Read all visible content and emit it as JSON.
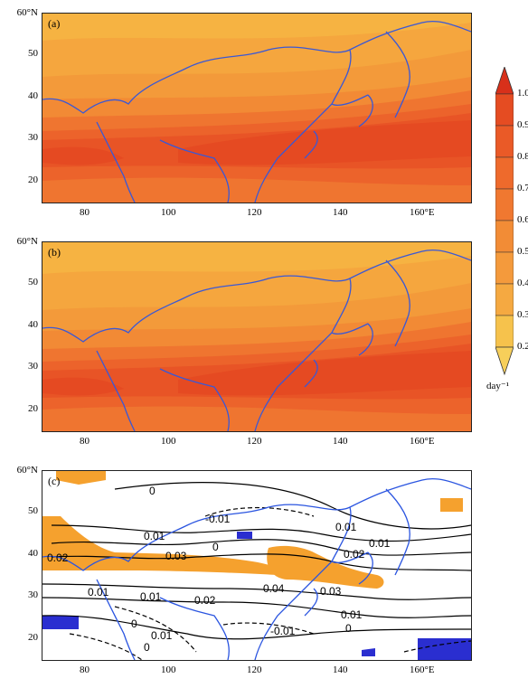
{
  "panels": [
    {
      "label": "(a)"
    },
    {
      "label": "(b)"
    },
    {
      "label": "(c)"
    }
  ],
  "axes": {
    "lat_ticks": [
      "60°N",
      "50",
      "40",
      "30",
      "20"
    ],
    "lon_ticks": [
      "80",
      "100",
      "120",
      "140",
      "160°E"
    ],
    "lat_values": [
      60,
      50,
      40,
      30,
      20
    ],
    "lon_values": [
      80,
      100,
      120,
      140,
      160
    ],
    "lon_range": [
      70,
      170
    ],
    "lat_range": [
      15,
      60
    ]
  },
  "colorbar": {
    "ticks": [
      "0.2",
      "0.3",
      "0.4",
      "0.5",
      "0.6",
      "0.7",
      "0.8",
      "0.9",
      "1.0"
    ],
    "unit": "day⁻¹",
    "colors": [
      "#f6c24c",
      "#f5a941",
      "#f49a3c",
      "#f28c36",
      "#f07830",
      "#ee6a2c",
      "#ea5a27",
      "#e54c22"
    ]
  },
  "contour_labels": [
    {
      "text": "0"
    },
    {
      "text": "-0.01"
    },
    {
      "text": "0.01"
    },
    {
      "text": "0"
    },
    {
      "text": "0.02"
    },
    {
      "text": "0.03"
    },
    {
      "text": "0.01"
    },
    {
      "text": "0.01"
    },
    {
      "text": "0.02"
    },
    {
      "text": "0.04"
    },
    {
      "text": "0.03"
    },
    {
      "text": "0.01"
    },
    {
      "text": "0.02"
    },
    {
      "text": "0.01"
    },
    {
      "text": "0.01"
    },
    {
      "text": "0"
    },
    {
      "text": "-0.01"
    },
    {
      "text": "0"
    },
    {
      "text": "0.01"
    },
    {
      "text": "0"
    }
  ],
  "colors": {
    "coast": "#3a58d6",
    "land_fill": "#f5a12e",
    "sig_blue": "#2a2ed0",
    "contour": "#000000"
  }
}
